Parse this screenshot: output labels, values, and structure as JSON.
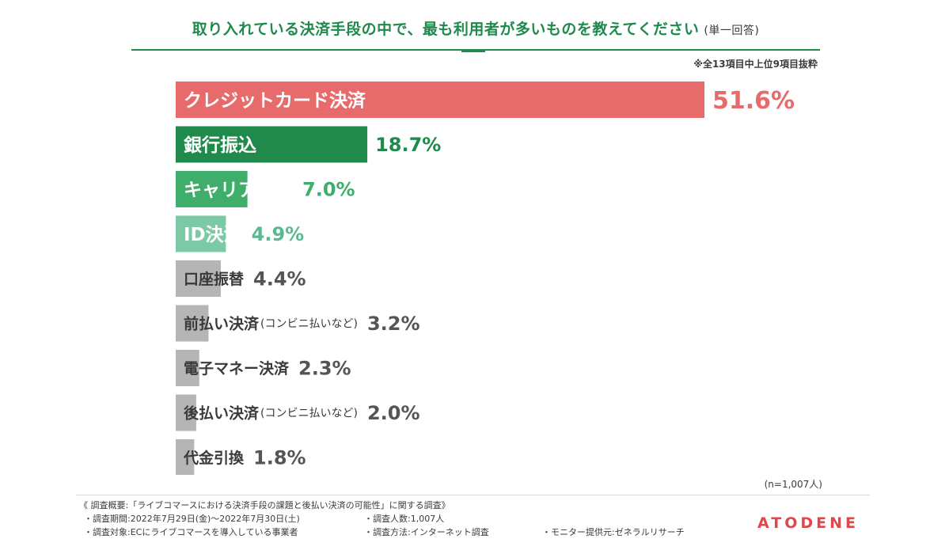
{
  "header": {
    "title": "取り入れている決済手段の中で、最も利用者が多いものを教えてください",
    "title_paren": "(単一回答)",
    "note": "※全13項目中上位9項目抜粋"
  },
  "chart_data": {
    "type": "bar",
    "orientation": "horizontal",
    "categories": [
      "クレジットカード決済",
      "銀行振込",
      "キャリア決済",
      "ID決済",
      "口座振替",
      "前払い決済",
      "電子マネー決済",
      "後払い決済",
      "代金引換"
    ],
    "category_suffixes": [
      "",
      "",
      "",
      "",
      "",
      "(コンビニ払いなど)",
      "",
      "(コンビニ払いなど)",
      ""
    ],
    "values": [
      51.6,
      18.7,
      7.0,
      4.9,
      4.4,
      3.2,
      2.3,
      2.0,
      1.8
    ],
    "value_labels": [
      "51.6%",
      "18.7%",
      "7.0%",
      "4.9%",
      "4.4%",
      "3.2%",
      "2.3%",
      "2.0%",
      "1.8%"
    ],
    "unit": "%",
    "colors": [
      "#e86b6b",
      "#1f8a4c",
      "#3fae6a",
      "#7ccaa5",
      "#b5b5b5",
      "#b5b5b5",
      "#b5b5b5",
      "#b5b5b5",
      "#b5b5b5"
    ],
    "label_colors": [
      "#ffffff",
      "#ffffff",
      "#ffffff",
      "#ffffff",
      "#3a3a3a",
      "#3a3a3a",
      "#3a3a3a",
      "#3a3a3a",
      "#3a3a3a"
    ],
    "value_colors": [
      "#e86b6b",
      "#1f8a4c",
      "#3fae6a",
      "#5bb98f",
      "#555555",
      "#555555",
      "#555555",
      "#555555",
      "#555555"
    ],
    "xlim": [
      0,
      51.6
    ],
    "grid": false,
    "legend": "none"
  },
  "sample_note": "(n=1,007人)",
  "footer": {
    "summary": "《 調査概要:「ライブコマースにおける決済手段の課題と後払い決済の可能性」に関する調査》",
    "period": "・調査期間:2022年7月29日(金)〜2022年7月30日(土)",
    "respondents": "・調査人数:1,007人",
    "target": "・調査対象:ECにライブコマースを導入している事業者",
    "method": "・調査方法:インターネット調査",
    "provider": "・モニター提供元:ゼネラルリサーチ"
  },
  "brand": {
    "logo": "ATODENE",
    "color": "#e0474c"
  }
}
